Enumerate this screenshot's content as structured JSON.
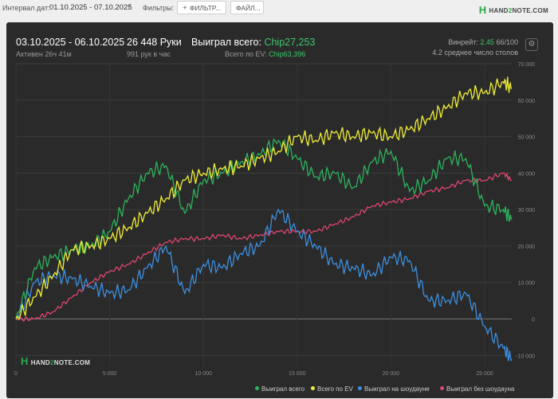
{
  "toolbar": {
    "interval_label": "Интервал дат:",
    "date_range": "01.10.2025 - 07.10.2025",
    "filters_label": "Фильтры:",
    "filter_button": "ФИЛЬТР...",
    "file_button": "ФАЙЛ...",
    "logo_prefix": "HAND",
    "logo_two": "2",
    "logo_suffix": "NOTE.COM"
  },
  "stats": {
    "date_range": "03.10.2025 - 06.10.2025",
    "active": "Активен 26ч 41м",
    "hands": "26 448 Руки",
    "hands_rate": "991 рук в час",
    "won_label": "Выиграл всего:",
    "won_value": "Chip27,253",
    "ev_label": "Всего по EV:",
    "ev_value": "Chip63,396",
    "winrate_label": "Винрейт:",
    "winrate_value": "2.45",
    "winrate_rest": "66/100",
    "tables": "4.2 среднее число столов"
  },
  "watermark": {
    "prefix": "HAND",
    "two": "2",
    "suffix": "NOTE.COM"
  },
  "colors": {
    "won_total": "#2db35b",
    "ev_total": "#f2ee35",
    "showdown": "#3c8fe0",
    "non_showdown": "#e0456f"
  },
  "chart_data": {
    "type": "line",
    "xlim": [
      0,
      26448
    ],
    "ylim": [
      -13000,
      70000
    ],
    "x_ticks": [
      0,
      5000,
      10000,
      15000,
      20000,
      25000
    ],
    "x_tick_labels": [
      "0",
      "5 000",
      "10 000",
      "15 000",
      "20 000",
      "25 000"
    ],
    "y_ticks": [
      -10000,
      0,
      10000,
      20000,
      30000,
      40000,
      50000,
      60000,
      70000
    ],
    "y_tick_labels": [
      "-10 000",
      "0",
      "10 000",
      "20 000",
      "30 000",
      "40 000",
      "50 000",
      "60 000",
      "70 000"
    ],
    "grid": true,
    "legend_position": "bottom-right",
    "x": [
      0,
      1000,
      2000,
      3000,
      4000,
      5000,
      6000,
      7000,
      8000,
      9000,
      10000,
      11000,
      12000,
      13000,
      14000,
      15000,
      16000,
      17000,
      18000,
      19000,
      20000,
      21000,
      22000,
      23000,
      24000,
      25000,
      26000,
      26448
    ],
    "series": [
      {
        "name": "Выиграл всего",
        "values": [
          0,
          14000,
          17000,
          19000,
          20000,
          24000,
          33000,
          40000,
          42000,
          29000,
          38000,
          40000,
          43000,
          45000,
          49000,
          44000,
          39000,
          40000,
          36000,
          43000,
          46000,
          35000,
          38000,
          44000,
          44000,
          31000,
          30000,
          27253
        ]
      },
      {
        "name": "Всего по EV",
        "values": [
          0,
          6000,
          12000,
          19000,
          20000,
          22000,
          25000,
          29000,
          33000,
          38000,
          40000,
          41000,
          42000,
          44000,
          46000,
          50000,
          49000,
          51000,
          50000,
          51000,
          50000,
          52000,
          55000,
          58000,
          62000,
          62000,
          65000,
          63396
        ]
      },
      {
        "name": "Выиграл на шоудауне",
        "values": [
          0,
          10000,
          12000,
          11000,
          9000,
          7000,
          8000,
          14000,
          20000,
          7000,
          15000,
          14000,
          18000,
          20000,
          30000,
          24000,
          20000,
          15000,
          14000,
          12000,
          17000,
          16000,
          5000,
          5000,
          7000,
          -2000,
          -8000,
          -11000
        ]
      },
      {
        "name": "Выиграл без шоудауна",
        "values": [
          0,
          0,
          2000,
          6000,
          10000,
          13000,
          15000,
          18000,
          21000,
          22000,
          22000,
          23000,
          22000,
          23000,
          24000,
          24000,
          24000,
          26000,
          28000,
          31000,
          32000,
          33000,
          35000,
          36000,
          38000,
          38000,
          40000,
          38000
        ]
      }
    ]
  }
}
